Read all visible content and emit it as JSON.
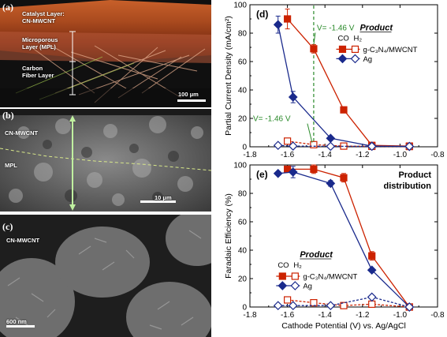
{
  "panel_a": {
    "label": "(a)",
    "layers": [
      "Catalyst Layer:",
      "CN-MWCNT",
      "Microporous",
      "Layer (MPL)",
      "Carbon",
      "Fiber Layer"
    ],
    "scale": "100 μm"
  },
  "panel_b": {
    "label": "(b)",
    "labels": [
      "CN-MWCNT",
      "MPL"
    ],
    "scale": "10 μm"
  },
  "panel_c": {
    "label": "(c)",
    "labels": [
      "CN-MWCNT"
    ],
    "scale": "600 nm"
  },
  "colors": {
    "gcn": "#cc2200",
    "ag": "#1a2a8c",
    "marker_line": "#2a8a2a"
  },
  "chart_data": [
    {
      "type": "line",
      "panel_label": "(d)",
      "xlabel": "",
      "ylabel": "Partial Current Density (mA/cm²)",
      "xlim": [
        -1.8,
        -0.8
      ],
      "ylim": [
        0,
        100
      ],
      "x_ticks": [
        "-1.8",
        "-1.6",
        "-1.4",
        "-1.2",
        "-1.0",
        "-0.8"
      ],
      "y_ticks": [
        "0",
        "20",
        "40",
        "60",
        "80",
        "100"
      ],
      "annotations": [
        {
          "text": "V= -1.46 V",
          "x": -1.46,
          "y": 82
        },
        {
          "text": "V= -1.46 V",
          "x": -1.46,
          "y": 18
        }
      ],
      "marker_x": -1.46,
      "legend": {
        "title": "Product",
        "cols": [
          "CO",
          "H₂"
        ],
        "entries": [
          "g-C₃N₄/MWCNT",
          "Ag"
        ]
      },
      "series": [
        {
          "name": "g-C₃N₄/MWCNT",
          "product": "CO",
          "x": [
            -1.6,
            -1.46,
            -1.3,
            -1.15,
            -0.95
          ],
          "y": [
            90,
            69,
            26,
            1,
            0.5
          ],
          "err": [
            7,
            3,
            2,
            0,
            0
          ]
        },
        {
          "name": "g-C₃N₄/MWCNT",
          "product": "H₂",
          "x": [
            -1.6,
            -1.46,
            -1.3,
            -1.15,
            -0.95
          ],
          "y": [
            4,
            1.5,
            0.5,
            0.3,
            0.2
          ],
          "err": [
            0,
            0,
            0,
            0,
            0
          ]
        },
        {
          "name": "Ag",
          "product": "CO",
          "x": [
            -1.65,
            -1.57,
            -1.37,
            -1.15,
            -0.95
          ],
          "y": [
            86,
            35,
            6,
            0.5,
            0.2
          ],
          "err": [
            6,
            4,
            0,
            0,
            0
          ]
        },
        {
          "name": "Ag",
          "product": "H₂",
          "x": [
            -1.65,
            -1.57,
            -1.37,
            -1.15,
            -0.95
          ],
          "y": [
            1,
            0.5,
            0.3,
            0.3,
            0.3
          ],
          "err": [
            0,
            0,
            0,
            0,
            0
          ]
        }
      ]
    },
    {
      "type": "line",
      "panel_label": "(e)",
      "title": "Product distribution",
      "xlabel": "Cathode Potential (V) vs. Ag/AgCl",
      "ylabel": "Faradaic Efficiency (%)",
      "xlim": [
        -1.8,
        -0.8
      ],
      "ylim": [
        0,
        100
      ],
      "x_ticks": [
        "-1.8",
        "-1.6",
        "-1.4",
        "-1.2",
        "-1.0",
        "-0.8"
      ],
      "y_ticks": [
        "0",
        "20",
        "40",
        "60",
        "80",
        "100"
      ],
      "legend": {
        "title": "Product",
        "cols": [
          "CO",
          "H₂"
        ],
        "entries": [
          "g-C₃N₄/MWCNT",
          "Ag"
        ]
      },
      "series": [
        {
          "name": "g-C₃N₄/MWCNT",
          "product": "CO",
          "x": [
            -1.6,
            -1.46,
            -1.3,
            -1.15,
            -0.95
          ],
          "y": [
            97,
            97,
            91,
            36,
            0
          ],
          "err": [
            2,
            3,
            3,
            3,
            0
          ]
        },
        {
          "name": "g-C₃N₄/MWCNT",
          "product": "H₂",
          "x": [
            -1.6,
            -1.46,
            -1.3,
            -1.15,
            -0.95
          ],
          "y": [
            5,
            3,
            1,
            2,
            0
          ],
          "err": [
            0,
            0,
            0,
            0,
            0
          ]
        },
        {
          "name": "Ag",
          "product": "CO",
          "x": [
            -1.65,
            -1.57,
            -1.37,
            -1.15,
            -0.95
          ],
          "y": [
            94,
            95,
            87,
            26,
            0
          ],
          "err": [
            0,
            4,
            2,
            0,
            0
          ]
        },
        {
          "name": "Ag",
          "product": "H₂",
          "x": [
            -1.65,
            -1.57,
            -1.37,
            -1.15,
            -0.95
          ],
          "y": [
            1,
            1,
            1,
            7,
            0
          ],
          "err": [
            0,
            0,
            0,
            0,
            0
          ]
        }
      ]
    }
  ]
}
